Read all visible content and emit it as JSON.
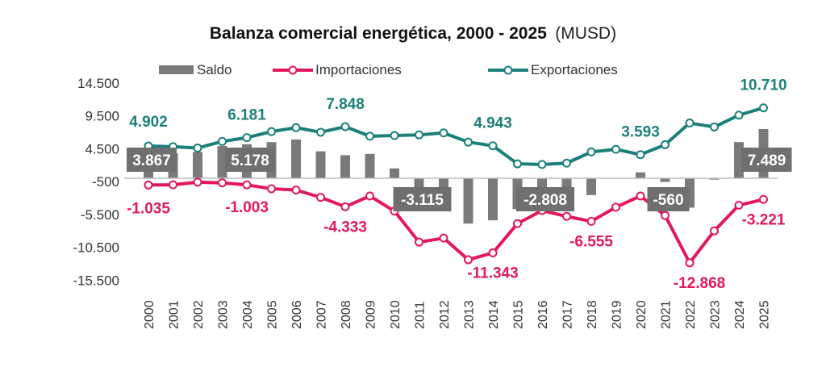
{
  "chart_data": {
    "type": "bar+line",
    "title": "Balanza comercial energética, 2000 - 2025",
    "title_unit": "(MUSD)",
    "xlabel": "",
    "ylabel": "",
    "ylim": [
      -15500,
      14500
    ],
    "yticks": [
      14500,
      9500,
      4500,
      -500,
      -5500,
      -10500,
      -15500
    ],
    "ytick_labels": [
      "14.500",
      "9.500",
      "4.500",
      "-500",
      "-5.500",
      "-10.500",
      "-15.500"
    ],
    "grid": false,
    "legend_position": "top",
    "categories": [
      "2000",
      "2001",
      "2002",
      "2003",
      "2004",
      "2005",
      "2006",
      "2007",
      "2008",
      "2009",
      "2010",
      "2011",
      "2012",
      "2013",
      "2014",
      "2015",
      "2016",
      "2017",
      "2018",
      "2019",
      "2020",
      "2021",
      "2022",
      "2023",
      "2024",
      "2025"
    ],
    "series": [
      {
        "name": "Saldo",
        "type": "bar",
        "color": "#7a7a7a",
        "values": [
          3867,
          3800,
          4000,
          4900,
          5178,
          5500,
          5900,
          4100,
          3515,
          3700,
          1500,
          -3115,
          -2200,
          -6900,
          -6400,
          -4700,
          -2808,
          -3500,
          -2555,
          0,
          900,
          -560,
          -4468,
          -200,
          5500,
          7489
        ]
      },
      {
        "name": "Importaciones",
        "type": "line",
        "color": "#e3175d",
        "values": [
          -1035,
          -1000,
          -600,
          -700,
          -1003,
          -1600,
          -1800,
          -2900,
          -4333,
          -2700,
          -5000,
          -9715,
          -9100,
          -12400,
          -11343,
          -6900,
          -4908,
          -5800,
          -6555,
          -4400,
          -2693,
          -5660,
          -12868,
          -8000,
          -4100,
          -3221
        ]
      },
      {
        "name": "Exportaciones",
        "type": "line",
        "color": "#1b7f7b",
        "values": [
          4902,
          4800,
          4600,
          5600,
          6181,
          7100,
          7700,
          7000,
          7848,
          6400,
          6500,
          6600,
          6900,
          5500,
          4943,
          2200,
          2100,
          2300,
          4000,
          4400,
          3593,
          5100,
          8400,
          7800,
          9600,
          10710
        ]
      }
    ],
    "annotations": [
      {
        "series": "Exportaciones",
        "year": "2000",
        "text": "4.902"
      },
      {
        "series": "Exportaciones",
        "year": "2004",
        "text": "6.181"
      },
      {
        "series": "Exportaciones",
        "year": "2008",
        "text": "7.848"
      },
      {
        "series": "Exportaciones",
        "year": "2014",
        "text": "4.943"
      },
      {
        "series": "Exportaciones",
        "year": "2020",
        "text": "3.593"
      },
      {
        "series": "Exportaciones",
        "year": "2025",
        "text": "10.710"
      },
      {
        "series": "Importaciones",
        "year": "2000",
        "text": "-1.035"
      },
      {
        "series": "Importaciones",
        "year": "2004",
        "text": "-1.003"
      },
      {
        "series": "Importaciones",
        "year": "2008",
        "text": "-4.333"
      },
      {
        "series": "Importaciones",
        "year": "2014",
        "text": "-11.343"
      },
      {
        "series": "Importaciones",
        "year": "2018",
        "text": "-6.555"
      },
      {
        "series": "Importaciones",
        "year": "2022",
        "text": "-12.868"
      },
      {
        "series": "Importaciones",
        "year": "2025",
        "text": "-3.221"
      },
      {
        "series": "Saldo",
        "year": "2000",
        "text": "3.867"
      },
      {
        "series": "Saldo",
        "year": "2004",
        "text": "5.178"
      },
      {
        "series": "Saldo",
        "year": "2011",
        "text": "-3.115"
      },
      {
        "series": "Saldo",
        "year": "2016",
        "text": "-2.808"
      },
      {
        "series": "Saldo",
        "year": "2021",
        "text": "-560"
      },
      {
        "series": "Saldo",
        "year": "2025",
        "text": "7.489"
      }
    ]
  }
}
